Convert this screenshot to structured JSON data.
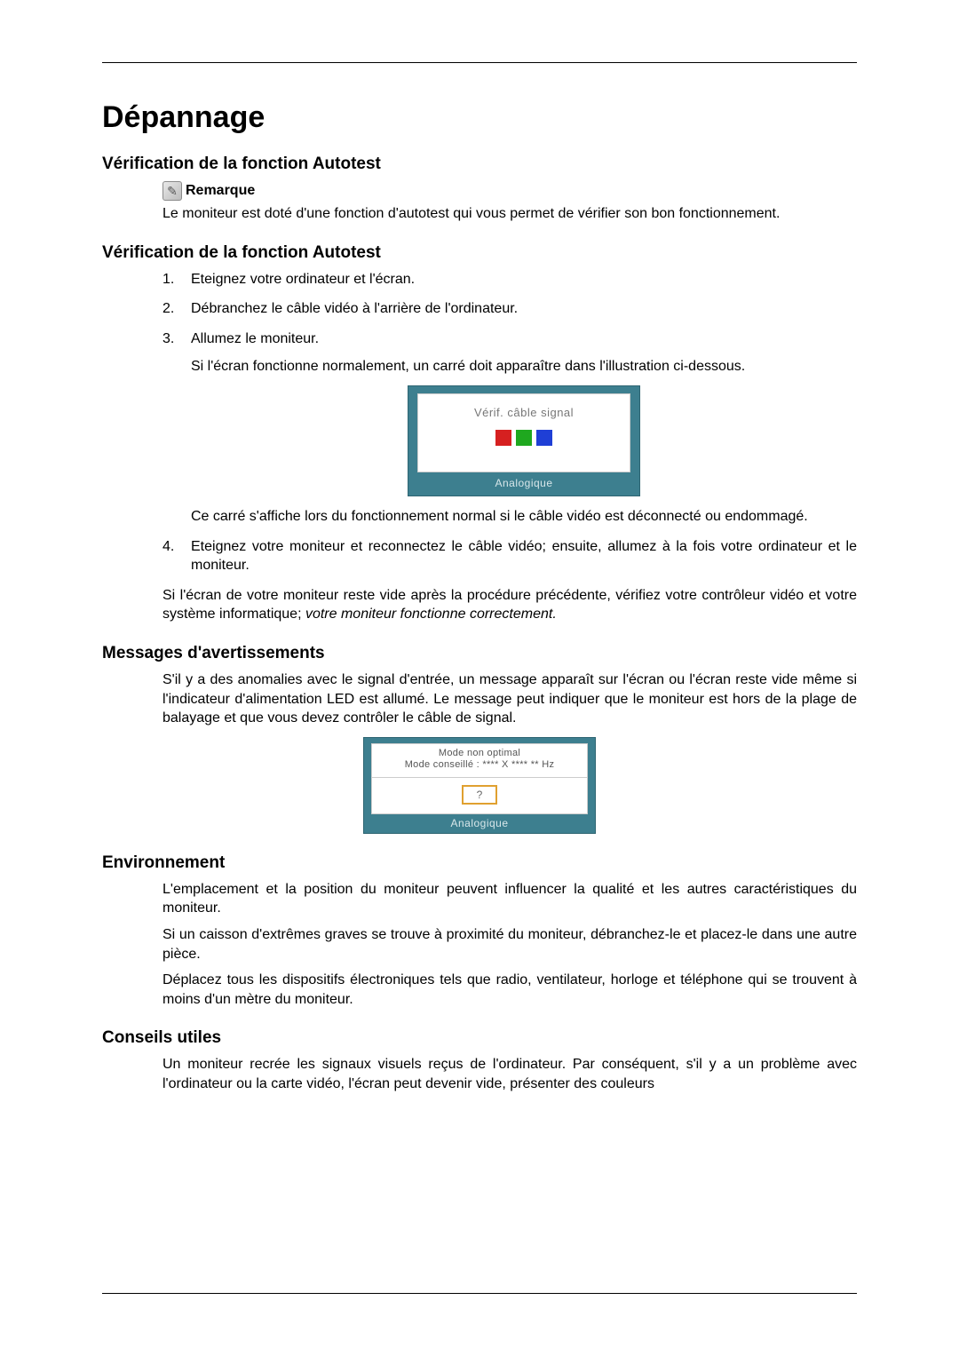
{
  "page": {
    "title": "Dépannage",
    "h2_autotest_verif": "Vérification de la fonction Autotest",
    "h2_autotest_verif2": "Vérification de la fonction Autotest",
    "h2_messages": "Messages d'avertissements",
    "h2_env": "Environnement",
    "h2_tips": "Conseils utiles"
  },
  "note": {
    "label": "Remarque",
    "icon_glyph": "✎",
    "text": "Le moniteur est doté d'une fonction d'autotest qui vous permet de vérifier son bon fonctionnement."
  },
  "steps": {
    "s1": "Eteignez votre ordinateur et l'écran.",
    "s2": "Débranchez le câble vidéo à l'arrière de l'ordinateur.",
    "s3": "Allumez le moniteur.",
    "s3_sub": "Si l'écran fonctionne normalement, un carré doit apparaître dans l'illustration ci-dessous.",
    "s3_after": "Ce carré s'affiche lors du fonctionnement normal si le câble vidéo est déconnecté ou endommagé.",
    "s4": "Eteignez votre moniteur et reconnectez le câble vidéo; ensuite, allumez à la fois votre ordinateur et le moniteur."
  },
  "after_steps": {
    "p1a": "Si l'écran de votre moniteur reste vide après la procédure précédente, vérifiez votre contrôleur vidéo et votre système informatique; ",
    "p1b_italic": "votre moniteur fonctionne correctement."
  },
  "dialog1": {
    "bg": "#3d7f8f",
    "panel_bg": "#ffffff",
    "msg": "Vérif. câble signal",
    "msg_color": "#777777",
    "footer": "Analogique",
    "footer_color": "#d8e7ea",
    "sq_colors": {
      "r": "#d62020",
      "g": "#1fa81f",
      "b": "#1f3fd6"
    }
  },
  "messages_section": {
    "p1": "S'il y a des anomalies avec le signal d'entrée, un message apparaît sur l'écran ou l'écran reste vide même si l'indicateur d'alimentation LED est allumé. Le message peut indiquer que le moniteur est hors de la plage de balayage et que vous devez contrôler le câble de signal."
  },
  "dialog2": {
    "bg": "#3d7f8f",
    "line1": "Mode non optimal",
    "line2": "Mode conseillé : **** X **** ** Hz",
    "qmark": "?",
    "q_border": "#e0a030",
    "footer": "Analogique",
    "footer_color": "#d8e7ea"
  },
  "env": {
    "p1": "L'emplacement et la position du moniteur peuvent influencer la qualité et les autres caractéristiques du moniteur.",
    "p2": "Si un caisson d'extrêmes graves se trouve à proximité du moniteur, débranchez-le et placez-le dans une autre pièce.",
    "p3": "Déplacez tous les dispositifs électroniques tels que radio, ventilateur, horloge et téléphone qui se trouvent à moins d'un mètre du moniteur."
  },
  "tips": {
    "p1": "Un moniteur recrée les signaux visuels reçus de l'ordinateur. Par conséquent, s'il y a un problème avec l'ordinateur ou la carte vidéo, l'écran peut devenir vide, présenter des couleurs"
  },
  "colors": {
    "rule": "#000000",
    "text": "#000000"
  }
}
